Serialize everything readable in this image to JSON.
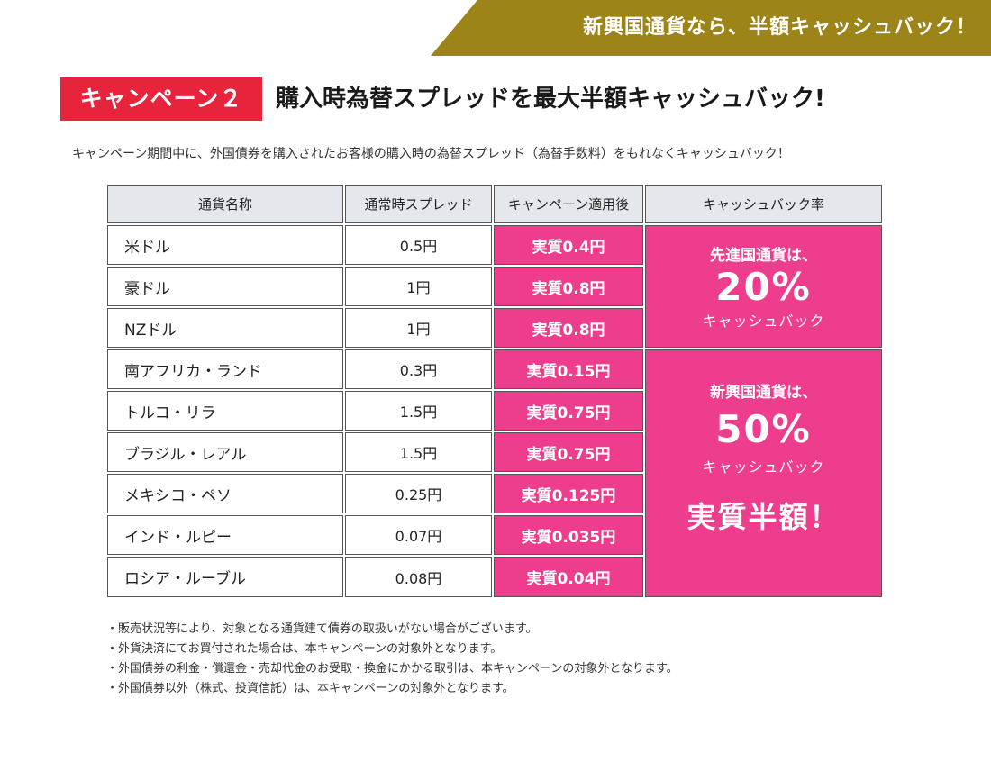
{
  "banner": {
    "text": "新興国通貨なら、半額キャッシュバック！"
  },
  "campaign": {
    "badge": "キャンペーン２",
    "title": "購入時為替スプレッドを最大半額キャッシュバック!"
  },
  "intro": "キャンペーン期間中に、外国債券を購入されたお客様の購入時の為替スプレッド（為替手数料）をもれなくキャッシュバック！",
  "table": {
    "headers": [
      "通貨名称",
      "通常時スプレッド",
      "キャンペーン適用後",
      "キャッシュバック率"
    ],
    "rows": [
      {
        "currency": "米ドル",
        "normal": "0.5円",
        "after": "実質0.4円"
      },
      {
        "currency": "豪ドル",
        "normal": "1円",
        "after": "実質0.8円"
      },
      {
        "currency": "NZドル",
        "normal": "1円",
        "after": "実質0.8円"
      },
      {
        "currency": "南アフリカ・ランド",
        "normal": "0.3円",
        "after": "実質0.15円"
      },
      {
        "currency": "トルコ・リラ",
        "normal": "1.5円",
        "after": "実質0.75円"
      },
      {
        "currency": "ブラジル・レアル",
        "normal": "1.5円",
        "after": "実質0.75円"
      },
      {
        "currency": "メキシコ・ペソ",
        "normal": "0.25円",
        "after": "実質0.125円"
      },
      {
        "currency": "インド・ルピー",
        "normal": "0.07円",
        "after": "実質0.035円"
      },
      {
        "currency": "ロシア・ルーブル",
        "normal": "0.08円",
        "after": "実質0.04円"
      }
    ],
    "rate_developed": {
      "label": "先進国通貨は、",
      "percent": "20%",
      "cashback": "キャッシュバック"
    },
    "rate_emerging": {
      "label": "新興国通貨は、",
      "percent": "50%",
      "cashback": "キャッシュバック",
      "highlight": "実質半額！"
    }
  },
  "notes": [
    "・販売状況等により、対象となる通貨建て債券の取扱いがない場合がございます。",
    "・外貨決済にてお買付された場合は、本キャンペーンの対象外となります。",
    "・外国債券の利金・償還金・売却代金のお受取・換金にかかる取引は、本キャンペーンの対象外となります。",
    "・外国債券以外（株式、投資信託）は、本キャンペーンの対象外となります。"
  ],
  "colors": {
    "gold": "#9c8418",
    "red": "#e8243d",
    "pink": "#ef3d8e",
    "header": "#e4e8ec"
  }
}
